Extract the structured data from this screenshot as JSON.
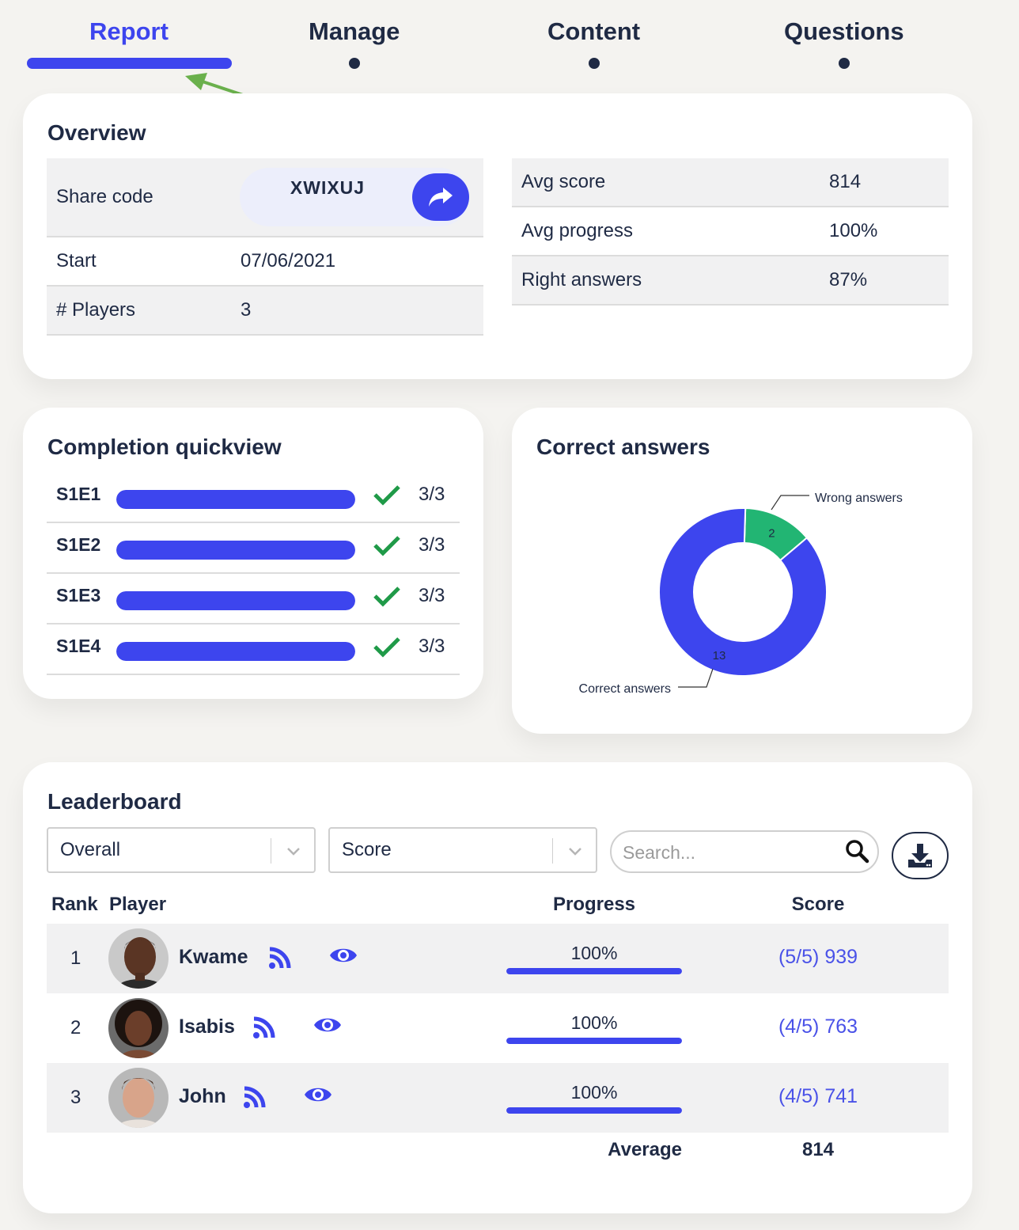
{
  "nav": {
    "tabs": [
      {
        "label": "Report",
        "active": true
      },
      {
        "label": "Manage",
        "active": false
      },
      {
        "label": "Content",
        "active": false
      },
      {
        "label": "Questions",
        "active": false
      }
    ]
  },
  "overview": {
    "title": "Overview",
    "share_label": "Share code",
    "share_code": "XWIXUJ",
    "start_label": "Start",
    "start_value": "07/06/2021",
    "players_label": "# Players",
    "players_value": "3",
    "avg_score_label": "Avg score",
    "avg_score_value": "814",
    "avg_progress_label": "Avg progress",
    "avg_progress_value": "100%",
    "right_answers_label": "Right answers",
    "right_answers_value": "87%"
  },
  "completion": {
    "title": "Completion quickview",
    "items": [
      {
        "label": "S1E1",
        "count": "3/3",
        "fraction": 1.0
      },
      {
        "label": "S1E2",
        "count": "3/3",
        "fraction": 1.0
      },
      {
        "label": "S1E3",
        "count": "3/3",
        "fraction": 1.0
      },
      {
        "label": "S1E4",
        "count": "3/3",
        "fraction": 1.0
      }
    ]
  },
  "correct": {
    "title": "Correct answers"
  },
  "chart_data": {
    "type": "pie",
    "title": "Correct answers",
    "categories": [
      "Correct answers",
      "Wrong answers"
    ],
    "values": [
      13,
      2
    ],
    "colors": [
      "#3d45ee",
      "#22b573"
    ],
    "donut": true
  },
  "leaderboard": {
    "title": "Leaderboard",
    "filter_value": "Overall",
    "sort_value": "Score",
    "search_placeholder": "Search...",
    "headers": {
      "rank": "Rank",
      "player": "Player",
      "progress": "Progress",
      "score": "Score"
    },
    "rows": [
      {
        "rank": "1",
        "name": "Kwame",
        "progress": "100%",
        "progress_fraction": 1.0,
        "score": "(5/5) 939"
      },
      {
        "rank": "2",
        "name": "Isabis",
        "progress": "100%",
        "progress_fraction": 1.0,
        "score": "(4/5) 763"
      },
      {
        "rank": "3",
        "name": "John",
        "progress": "100%",
        "progress_fraction": 1.0,
        "score": "(4/5) 741"
      }
    ],
    "average_label": "Average",
    "average_value": "814"
  },
  "colors": {
    "accent": "#3d45ee",
    "text": "#1f2a44",
    "success": "#22b573",
    "check": "#1f9a48",
    "annotation_arrow": "#6ab04c"
  }
}
